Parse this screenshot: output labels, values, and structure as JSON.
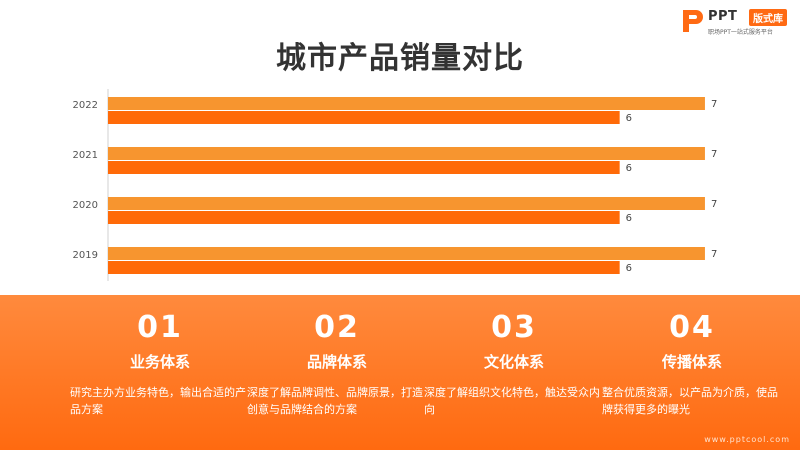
{
  "logo": {
    "brand": "PPT",
    "badge": "版式库",
    "tagline": "职场PPT一站式服务平台"
  },
  "title": "城市产品销量对比",
  "colors": {
    "accent": "#ff6a13",
    "bar_series_1": "#f7952f",
    "bar_series_2": "#ff6a08"
  },
  "chart_data": {
    "type": "bar",
    "orientation": "horizontal",
    "categories": [
      "2022",
      "2021",
      "2020",
      "2019"
    ],
    "series": [
      {
        "values": [
          7,
          7,
          7,
          7
        ]
      },
      {
        "values": [
          6,
          6,
          6,
          6
        ]
      }
    ],
    "xlim": [
      0,
      7.2
    ],
    "grid": false
  },
  "cards": [
    {
      "num": "01",
      "title": "业务体系",
      "desc": "研究主办方业务特色，输出合适的产品方案"
    },
    {
      "num": "02",
      "title": "品牌体系",
      "desc": "深度了解品牌调性、品牌原景，打造创意与品牌结合的方案"
    },
    {
      "num": "03",
      "title": "文化体系",
      "desc": "深度了解组织文化特色，触达受众内向"
    },
    {
      "num": "04",
      "title": "传播体系",
      "desc": "整合优质资源，以产品为介质，使品牌获得更多的曝光"
    }
  ],
  "footer_url": "www.pptcool.com"
}
